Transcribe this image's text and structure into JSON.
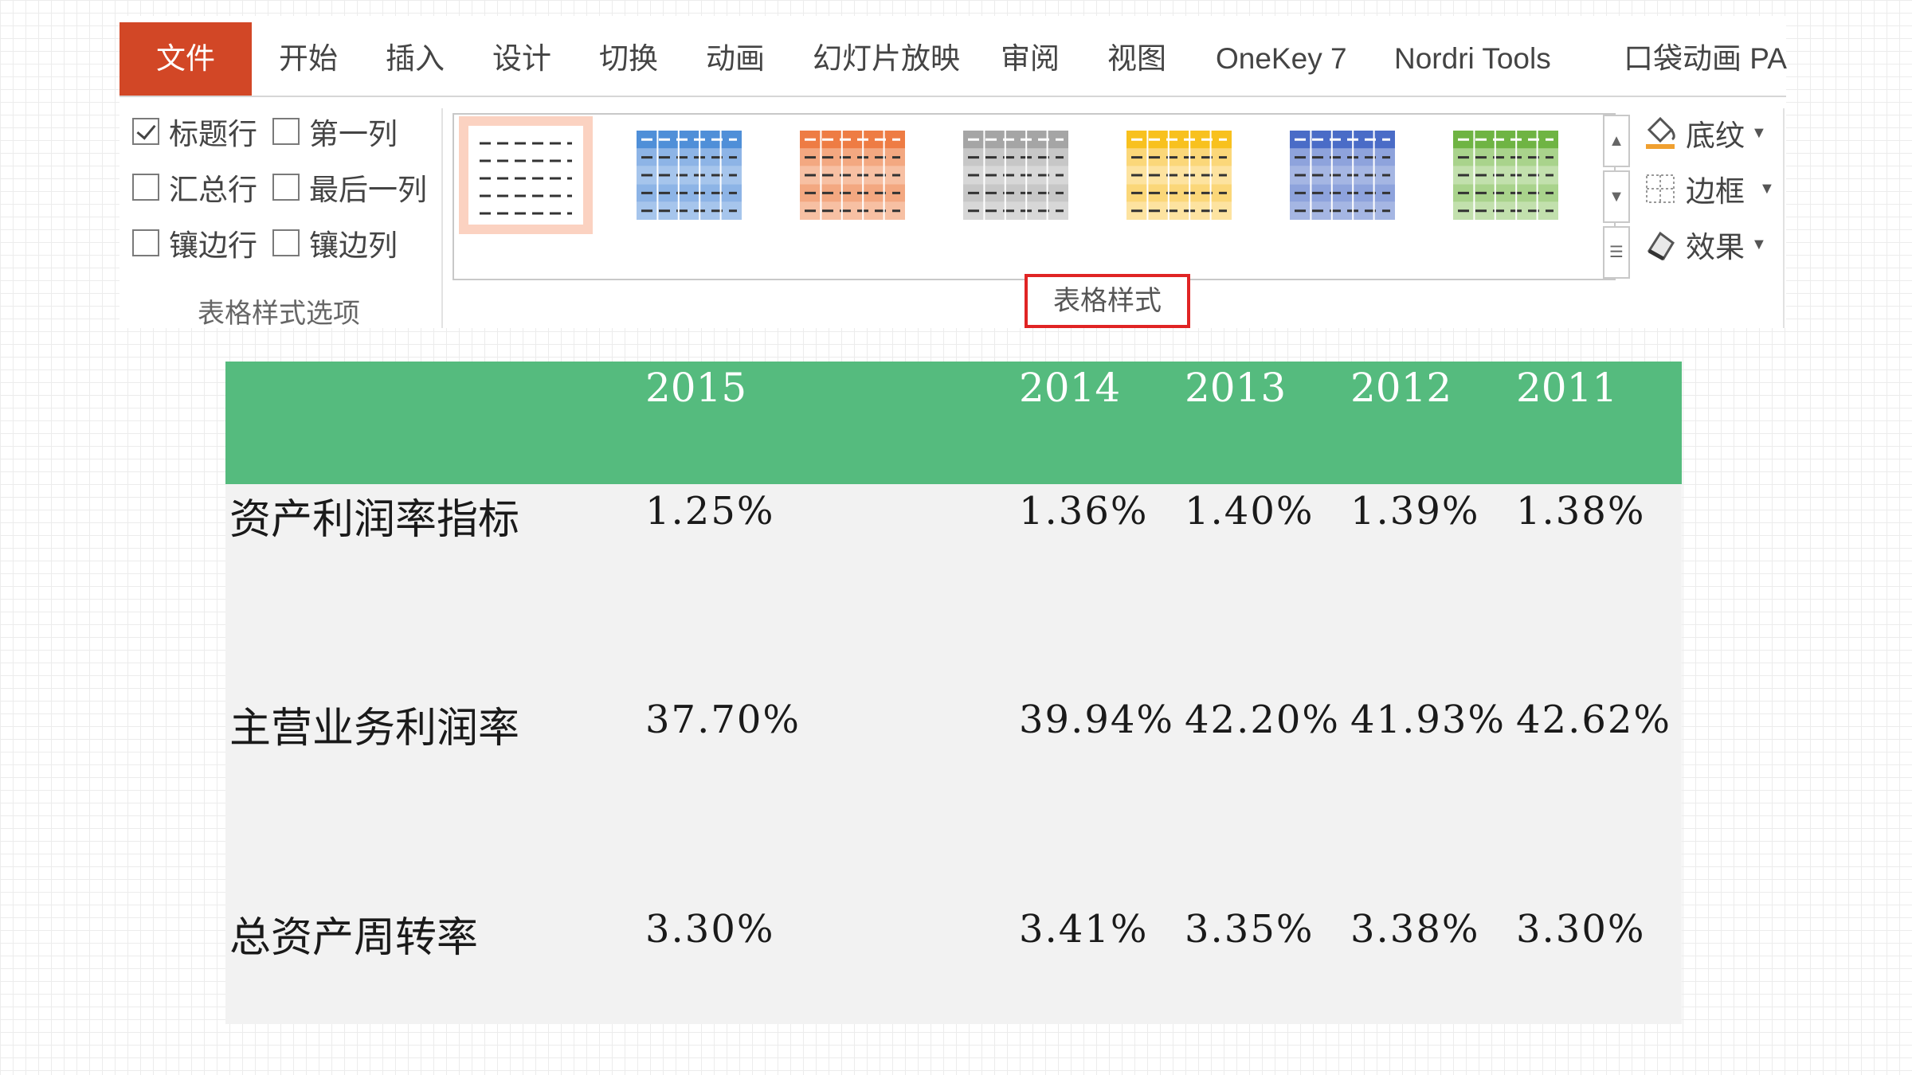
{
  "ribbon": {
    "tabs": [
      "文件",
      "开始",
      "插入",
      "设计",
      "切换",
      "动画",
      "幻灯片放映",
      "审阅",
      "视图",
      "OneKey 7",
      "Nordri Tools",
      "口袋动画 PA"
    ],
    "file_tab_color": "#d24726",
    "style_options": {
      "items": [
        {
          "label": "标题行",
          "checked": true
        },
        {
          "label": "第一列",
          "checked": false
        },
        {
          "label": "汇总行",
          "checked": false
        },
        {
          "label": "最后一列",
          "checked": false
        },
        {
          "label": "镶边行",
          "checked": false
        },
        {
          "label": "镶边列",
          "checked": false
        }
      ],
      "group_label": "表格样式选项"
    },
    "table_styles": {
      "group_label": "表格样式",
      "swatches": [
        {
          "name": "none",
          "header": "#ffffff",
          "body": "#ffffff",
          "band": "#ffffff",
          "selected": true
        },
        {
          "name": "blue",
          "header": "#4f8fd8",
          "body": "#a6c5ec",
          "band": "#8db4e6",
          "selected": false
        },
        {
          "name": "orange",
          "header": "#ee7c44",
          "body": "#f7c0a3",
          "band": "#f3a881",
          "selected": false
        },
        {
          "name": "gray",
          "header": "#a5a5a5",
          "body": "#d7d7d7",
          "band": "#c7c7c7",
          "selected": false
        },
        {
          "name": "gold",
          "header": "#f8c11e",
          "body": "#fde3a0",
          "band": "#fbd779",
          "selected": false
        },
        {
          "name": "darkblue",
          "header": "#4a6cc7",
          "body": "#a5b6e3",
          "band": "#8ea3dc",
          "selected": false
        },
        {
          "name": "green",
          "header": "#6fb443",
          "body": "#c2e0ad",
          "band": "#a9d38c",
          "selected": false
        }
      ],
      "commands": [
        {
          "label": "底纹",
          "icon": "paint-bucket-icon"
        },
        {
          "label": "边框",
          "icon": "border-grid-icon"
        },
        {
          "label": "效果",
          "icon": "effects-icon"
        }
      ]
    }
  },
  "table": {
    "header_color": "#55bb7e",
    "years": [
      "2015",
      "2014",
      "2013",
      "2012",
      "2011"
    ],
    "rows": [
      {
        "label": "资产利润率指标",
        "values": [
          "1.25%",
          "1.36%",
          "1.40%",
          "1.39%",
          "1.38%"
        ]
      },
      {
        "label": "主营业务利润率",
        "values": [
          "37.70%",
          "39.94%",
          "42.20%",
          "41.93%",
          "42.62%"
        ]
      },
      {
        "label": "总资产周转率",
        "values": [
          "3.30%",
          "3.41%",
          "3.35%",
          "3.38%",
          "3.30%"
        ]
      }
    ]
  }
}
